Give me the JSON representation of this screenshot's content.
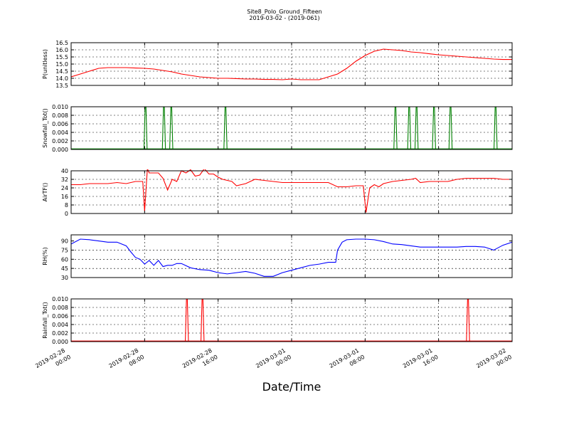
{
  "chart_data": {
    "type": "line",
    "title": "Site8_Polo_Ground_Fifteen",
    "subtitle": "2019-03-02 - (2019-061)",
    "xlabel": "Date/Time",
    "x_tick_labels": [
      [
        "2019-02-28",
        "00:00"
      ],
      [
        "2019-02-28",
        "08:00"
      ],
      [
        "2019-02-28",
        "16:00"
      ],
      [
        "2019-03-01",
        "00:00"
      ],
      [
        "2019-03-01",
        "08:00"
      ],
      [
        "2019-03-01",
        "16:00"
      ],
      [
        "2019-03-02",
        "00:00"
      ]
    ],
    "x_range_hours": [
      0,
      48
    ],
    "grid": true,
    "panels": [
      {
        "ylabel": "P(unitless)",
        "ylim": [
          13.5,
          16.5
        ],
        "yticks": [
          13.5,
          14.0,
          14.5,
          15.0,
          15.5,
          16.0,
          16.5
        ],
        "tick_format": "1",
        "color": "#ff0000",
        "hours": [
          0,
          1,
          2,
          3,
          4,
          5,
          6,
          7,
          8,
          9,
          10,
          11,
          12,
          13,
          14,
          15,
          16,
          17,
          18,
          19,
          20,
          21,
          22,
          23,
          24,
          25,
          26,
          27,
          28,
          29,
          30,
          31,
          32,
          33,
          34,
          35,
          36,
          37,
          38,
          39,
          40,
          41,
          42,
          43,
          44,
          45,
          46,
          47,
          48
        ],
        "values": [
          14.1,
          14.3,
          14.5,
          14.7,
          14.75,
          14.75,
          14.75,
          14.72,
          14.7,
          14.65,
          14.55,
          14.45,
          14.3,
          14.2,
          14.1,
          14.05,
          14.0,
          14.0,
          13.98,
          13.95,
          13.95,
          13.92,
          13.92,
          13.9,
          13.95,
          13.9,
          13.9,
          13.9,
          14.1,
          14.3,
          14.7,
          15.2,
          15.6,
          15.9,
          16.05,
          16.0,
          15.95,
          15.85,
          15.8,
          15.72,
          15.65,
          15.6,
          15.55,
          15.5,
          15.45,
          15.4,
          15.35,
          15.32,
          15.32
        ]
      },
      {
        "ylabel": "Snowfall_Tot()",
        "ylim": [
          0,
          0.01
        ],
        "yticks": [
          0.0,
          0.002,
          0.004,
          0.006,
          0.008,
          0.01
        ],
        "tick_format": "3",
        "color": "#008000",
        "spikes_hours": [
          8.1,
          10.1,
          10.9,
          16.8,
          35.3,
          36.8,
          37.6,
          39.5,
          41.3,
          46.2
        ]
      },
      {
        "ylabel": "AirTF()",
        "ylim": [
          0,
          40
        ],
        "yticks": [
          0,
          8,
          16,
          24,
          32,
          40
        ],
        "tick_format": "0",
        "color": "#ff0000",
        "hours": [
          0,
          1,
          2,
          3,
          4,
          5,
          6,
          7,
          7.8,
          8.0,
          8.3,
          8.5,
          9.0,
          9.5,
          10.0,
          10.5,
          11.0,
          11.5,
          12.0,
          12.5,
          13.0,
          13.5,
          14.0,
          14.5,
          15.0,
          15.5,
          16.0,
          16.5,
          17.0,
          17.5,
          18.0,
          19,
          20,
          21,
          22,
          23,
          24,
          25,
          26,
          27,
          28,
          29,
          30,
          31,
          31.8,
          32.1,
          32.5,
          33.0,
          33.5,
          34,
          35,
          36,
          37,
          37.5,
          38,
          39,
          40,
          41,
          42,
          43,
          44,
          45,
          46,
          47,
          48
        ],
        "values": [
          27,
          27,
          28,
          28,
          28,
          29,
          28,
          30,
          30,
          2,
          42,
          38,
          38,
          38,
          33,
          22,
          32,
          30,
          40,
          38,
          41,
          35,
          36,
          42,
          37,
          37,
          34,
          32,
          31,
          30,
          26,
          28,
          32,
          31,
          30,
          29,
          29,
          29,
          29,
          29,
          29,
          25,
          25,
          26,
          26,
          1,
          24,
          27,
          25,
          28,
          30,
          31,
          32,
          33,
          29,
          30,
          30,
          30,
          32,
          33,
          33,
          33,
          33,
          32,
          32
        ]
      },
      {
        "ylabel": "RH(%)",
        "ylim": [
          30,
          100
        ],
        "yticks": [
          30,
          45,
          60,
          75,
          90
        ],
        "tick_format": "0",
        "color": "#0000ff",
        "hours": [
          0,
          1,
          2,
          3,
          4,
          5,
          6,
          6.5,
          7,
          7.5,
          8,
          8.5,
          9,
          9.5,
          10,
          10.5,
          11,
          11.5,
          12,
          13,
          14,
          15,
          16,
          17,
          18,
          19,
          20,
          21,
          22,
          23,
          24,
          25,
          26,
          27,
          28,
          28.8,
          29,
          29.5,
          30,
          31,
          32,
          33,
          34,
          35,
          36,
          37,
          38,
          39,
          40,
          41,
          42,
          43,
          44,
          45,
          46,
          47,
          48
        ],
        "values": [
          85,
          93,
          92,
          90,
          88,
          88,
          82,
          72,
          63,
          60,
          52,
          58,
          50,
          58,
          48,
          50,
          50,
          53,
          53,
          46,
          43,
          42,
          38,
          36,
          38,
          40,
          37,
          32,
          32,
          38,
          42,
          46,
          50,
          52,
          55,
          55,
          75,
          88,
          92,
          93,
          93,
          92,
          89,
          85,
          84,
          82,
          80,
          80,
          80,
          80,
          80,
          81,
          81,
          80,
          75,
          83,
          88
        ]
      },
      {
        "ylabel": "Rainfall_Tot()",
        "ylim": [
          0,
          0.01
        ],
        "yticks": [
          0.0,
          0.002,
          0.004,
          0.006,
          0.008,
          0.01
        ],
        "tick_format": "3",
        "color": "#ff0000",
        "spikes_hours": [
          12.6,
          14.3,
          43.2
        ]
      }
    ]
  }
}
